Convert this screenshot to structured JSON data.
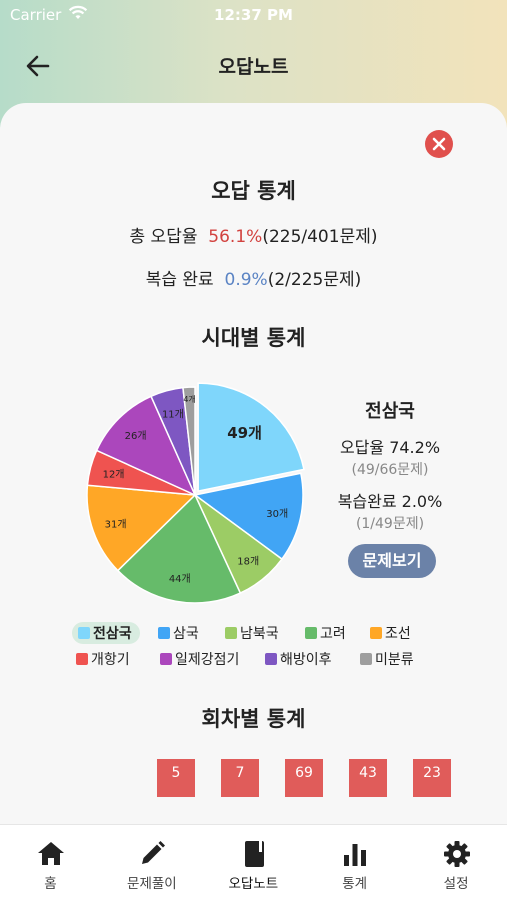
{
  "status_bar": {
    "carrier": "Carrier",
    "time": "12:37 PM"
  },
  "header": {
    "title": "오답노트"
  },
  "stats": {
    "heading": "오답 통계",
    "wrong_label": "총 오답율",
    "wrong_rate": "56.1%",
    "wrong_detail": "(225/401문제)",
    "review_label": "복습 완료",
    "review_rate": "0.9%",
    "review_detail": "(2/225문제)"
  },
  "era": {
    "heading": "시대별 통계",
    "selected": {
      "name": "전삼국",
      "wrong_rate": "오답율 74.2%",
      "wrong_detail": "(49/66문제)",
      "review_rate": "복습완료 2.0%",
      "review_detail": "(1/49문제)",
      "button": "문제보기"
    }
  },
  "chart_data": {
    "type": "pie",
    "unit": "개",
    "slices": [
      {
        "label": "전삼국",
        "value": 49,
        "color": "#7fd6fb",
        "exploded": true
      },
      {
        "label": "삼국",
        "value": 30,
        "color": "#41a5f5"
      },
      {
        "label": "남북국",
        "value": 18,
        "color": "#9ccc65"
      },
      {
        "label": "고려",
        "value": 44,
        "color": "#66bb6a"
      },
      {
        "label": "조선",
        "value": 31,
        "color": "#ffa726"
      },
      {
        "label": "개항기",
        "value": 12,
        "color": "#ef5350"
      },
      {
        "label": "일제강점기",
        "value": 26,
        "color": "#ab47bc"
      },
      {
        "label": "해방이후",
        "value": 11,
        "color": "#7e57c2"
      },
      {
        "label": "미분류",
        "value": 4,
        "color": "#9e9e9e"
      }
    ]
  },
  "round": {
    "heading": "회차별 통계",
    "values": [
      "5",
      "7",
      "69",
      "43",
      "23"
    ]
  },
  "tabbar": {
    "items": [
      {
        "label": "홈",
        "icon": "home-icon"
      },
      {
        "label": "문제풀이",
        "icon": "pencil-icon"
      },
      {
        "label": "오답노트",
        "icon": "notebook-icon",
        "active": true
      },
      {
        "label": "통계",
        "icon": "bar-chart-icon"
      },
      {
        "label": "설정",
        "icon": "gear-icon"
      }
    ]
  }
}
